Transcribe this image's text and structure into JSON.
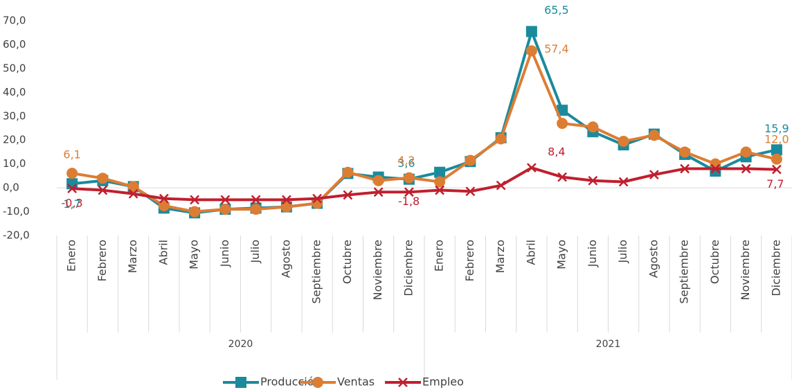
{
  "chart_data": {
    "type": "line",
    "categories": [
      "Enero",
      "Febrero",
      "Marzo",
      "Abril",
      "Mayo",
      "Junio",
      "Julio",
      "Agosto",
      "Septiembre",
      "Octubre",
      "Noviembre",
      "Diciembre",
      "Enero",
      "Febrero",
      "Marzo",
      "Abril",
      "Mayo",
      "Junio",
      "Julio",
      "Agosto",
      "Septiembre",
      "Octubre",
      "Noviembre",
      "Diciembre"
    ],
    "groups": [
      {
        "label": "2020",
        "span": 12
      },
      {
        "label": "2021",
        "span": 12
      }
    ],
    "ylim": [
      -20,
      70
    ],
    "yticks": [
      {
        "value": -20,
        "label": "-20,0"
      },
      {
        "value": -10,
        "label": "-10,0"
      },
      {
        "value": 0,
        "label": "0,0"
      },
      {
        "value": 10,
        "label": "10,0"
      },
      {
        "value": 20,
        "label": "20,0"
      },
      {
        "value": 30,
        "label": "30,0"
      },
      {
        "value": 40,
        "label": "40,0"
      },
      {
        "value": 50,
        "label": "50,0"
      },
      {
        "value": 60,
        "label": "60,0"
      },
      {
        "value": 70,
        "label": "70,0"
      }
    ],
    "legend": "bottom",
    "series": [
      {
        "name": "Producción",
        "color": "#1b8a9c",
        "marker": "square",
        "values": [
          1.7,
          3,
          0.5,
          -8.5,
          -10.5,
          -9,
          -8.5,
          -8,
          -6.5,
          6,
          4.5,
          3.6,
          6.5,
          11,
          21,
          65.5,
          32.5,
          23.5,
          18,
          22.5,
          14,
          7,
          13,
          15.9
        ],
        "value_labels": [
          "1,7",
          null,
          null,
          null,
          null,
          null,
          null,
          null,
          null,
          null,
          null,
          "3,6",
          null,
          null,
          null,
          "65,5",
          null,
          null,
          null,
          null,
          null,
          null,
          null,
          "15,9"
        ]
      },
      {
        "name": "Ventas",
        "color": "#dc7d34",
        "marker": "circle",
        "values": [
          6.1,
          4,
          0.5,
          -7.5,
          -10,
          -9,
          -9,
          -8,
          -6.5,
          6.5,
          3,
          4.2,
          2.5,
          11.5,
          20.5,
          57.4,
          27,
          25.5,
          19.5,
          22,
          15,
          10,
          15,
          12.0
        ],
        "value_labels": [
          "6,1",
          null,
          null,
          null,
          null,
          null,
          null,
          null,
          null,
          null,
          null,
          "4,2",
          null,
          null,
          null,
          "57,4",
          null,
          null,
          null,
          null,
          null,
          null,
          null,
          "12,0"
        ]
      },
      {
        "name": "Empleo",
        "color": "#c01f2e",
        "marker": "x",
        "values": [
          -0.3,
          -1,
          -2.5,
          -4.5,
          -5,
          -5,
          -5,
          -5,
          -4.5,
          -3,
          -1.8,
          -1.8,
          -1,
          -1.5,
          1,
          8.4,
          4.5,
          3,
          2.5,
          5.5,
          8,
          8,
          8,
          7.7
        ],
        "value_labels": [
          "-0,3",
          null,
          null,
          null,
          null,
          null,
          null,
          null,
          null,
          null,
          "-1,8",
          null,
          null,
          null,
          null,
          "8,4",
          null,
          null,
          null,
          null,
          null,
          null,
          null,
          "7,7"
        ]
      }
    ]
  }
}
